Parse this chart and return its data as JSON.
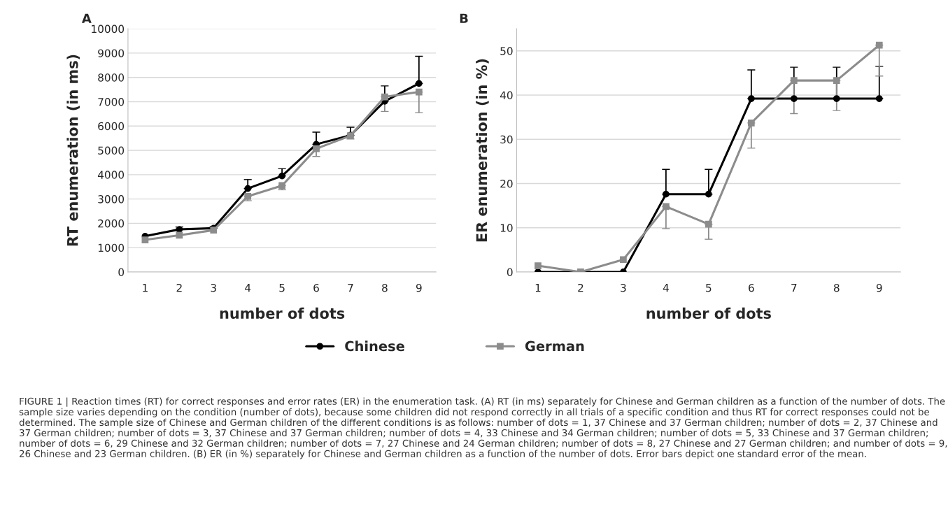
{
  "chart_data": [
    {
      "type": "line",
      "title": "A",
      "xlabel": "number of dots",
      "ylabel": "RT enumeration (in ms)",
      "categories": [
        "1",
        "2",
        "3",
        "4",
        "5",
        "6",
        "7",
        "8",
        "9"
      ],
      "series": [
        {
          "name": "Chinese",
          "color": "#000000",
          "marker": "circle",
          "values": [
            1470,
            1750,
            1800,
            3430,
            3950,
            5250,
            5620,
            7020,
            7750
          ],
          "errors": [
            null,
            [
              1750,
              1850
            ],
            [
              1800,
              1870
            ],
            [
              3430,
              3800
            ],
            [
              3950,
              4250
            ],
            [
              5250,
              5750
            ],
            [
              5620,
              5950
            ],
            [
              7020,
              7650
            ],
            [
              7750,
              8870
            ]
          ]
        },
        {
          "name": "German",
          "color": "#8c8c8c",
          "marker": "square",
          "values": [
            1320,
            1510,
            1720,
            3110,
            3550,
            5070,
            5600,
            7200,
            7400
          ],
          "errors": [
            null,
            null,
            null,
            [
              2930,
              3110
            ],
            [
              3380,
              3550
            ],
            [
              4750,
              5070
            ],
            [
              5470,
              5600
            ],
            [
              6600,
              7200
            ],
            [
              6550,
              7400
            ]
          ]
        }
      ],
      "ylim": [
        0,
        10000
      ],
      "yticks": [
        0,
        1000,
        2000,
        3000,
        4000,
        5000,
        6000,
        7000,
        8000,
        9000,
        10000
      ],
      "grid": "y",
      "legend": "bottom",
      "annotations": [
        "FIGURE 1 | Reaction times (RT) for correct responses and error rates (ER) in the enumeration task. (A) RT (in ms) separately for Chinese and German children as a function of the number of dots. The sample size varies depending on the condition (number of dots), because some children did not respond correctly in all trials of a specific condition and thus RT for correct responses could not be determined. The sample size of Chinese and German children of the different conditions is as follows: number of dots = 1, 37 Chinese and 37 German children; number of dots = 2, 37 Chinese and 37 German children; number of dots = 3, 37 Chinese and 37 German children; number of dots = 4, 33 Chinese and 34 German children; number of dots = 5, 33 Chinese and 37 German children; number of dots = 6, 29 Chinese and 32 German children; number of dots = 7, 27 Chinese and 24 German children; number of dots = 8, 27 Chinese and 27 German children; and number of dots = 9, 26 Chinese and 23 German children. (B) ER (in %) separately for Chinese and German children as a function of the number of dots. Error bars depict one standard error of the mean."
      ]
    },
    {
      "type": "line",
      "title": "B",
      "xlabel": "number of dots",
      "ylabel": "ER enumeration (in %)",
      "categories": [
        "1",
        "2",
        "3",
        "4",
        "5",
        "6",
        "7",
        "8",
        "9"
      ],
      "series": [
        {
          "name": "Chinese",
          "color": "#000000",
          "marker": "circle",
          "values": [
            0,
            0,
            0,
            17.6,
            17.6,
            39.2,
            39.2,
            39.2,
            39.2
          ],
          "errors": [
            null,
            null,
            null,
            [
              17.6,
              23.2
            ],
            [
              17.6,
              23.2
            ],
            [
              39.2,
              45.7
            ],
            [
              39.2,
              46.3
            ],
            [
              39.2,
              46.3
            ],
            [
              39.2,
              46.5
            ]
          ]
        },
        {
          "name": "German",
          "color": "#8c8c8c",
          "marker": "square",
          "values": [
            1.4,
            0,
            2.8,
            14.8,
            10.8,
            33.7,
            43.3,
            43.3,
            51.3
          ],
          "errors": [
            null,
            null,
            null,
            [
              9.8,
              14.8
            ],
            [
              7.4,
              10.8
            ],
            [
              28,
              33.7
            ],
            [
              35.8,
              43.3
            ],
            [
              36.5,
              43.3
            ],
            [
              44.3,
              51.3
            ]
          ]
        }
      ],
      "ylim": [
        0,
        55
      ],
      "yticks": [
        0,
        10,
        20,
        30,
        40,
        50
      ],
      "grid": "y",
      "legend": "bottom"
    }
  ]
}
